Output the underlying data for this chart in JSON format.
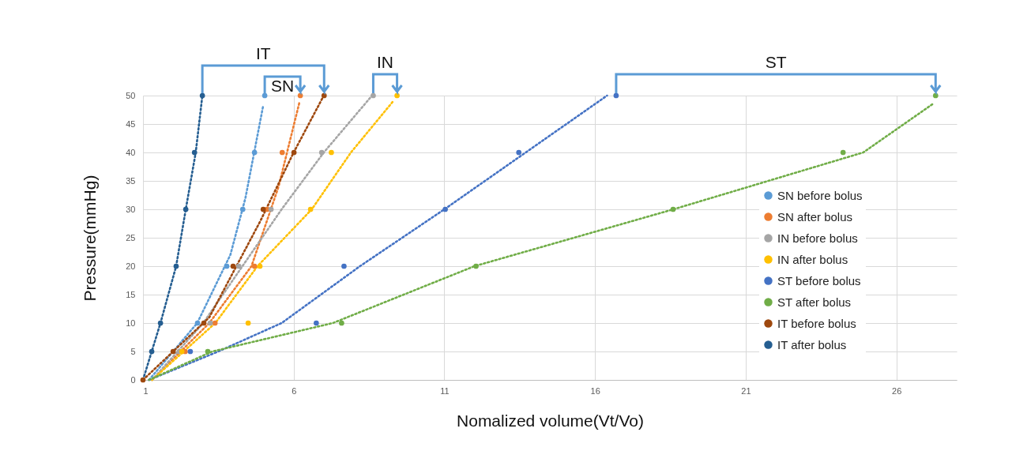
{
  "chart_data": {
    "type": "scatter",
    "xlabel": "Nomalized volume(Vt/Vo)",
    "ylabel": "Pressure(mmHg)",
    "xlim": [
      1,
      28
    ],
    "xticks": [
      1,
      6,
      11,
      16,
      21,
      26
    ],
    "ylim": [
      0,
      50
    ],
    "yticks": [
      0,
      5,
      10,
      15,
      20,
      25,
      30,
      35,
      40,
      45,
      50
    ],
    "grid": true,
    "legend": "bottom right",
    "marker": "circle",
    "annotations": [
      "SN",
      "IN",
      "ST",
      "IT"
    ],
    "series": [
      {
        "name": "SN before bolus",
        "color": "#5b9bd5",
        "x": [
          2.81,
          3.78,
          4.31,
          4.7,
          5.04
        ],
        "values": [
          10,
          20,
          30,
          40,
          50
        ]
      },
      {
        "name": "SN after bolus",
        "color": "#ed7d31",
        "x": [
          2.4,
          3.39,
          4.7,
          5.12,
          5.62,
          6.22
        ],
        "values": [
          5,
          10,
          20,
          30,
          40,
          50
        ]
      },
      {
        "name": "IN before bolus",
        "color": "#a5a5a5",
        "x": [
          2.2,
          3.23,
          4.18,
          5.25,
          6.93,
          8.64
        ],
        "values": [
          5,
          10,
          20,
          30,
          40,
          50
        ]
      },
      {
        "name": "IN after bolus",
        "color": "#ffc000",
        "x": [
          2.29,
          4.49,
          4.88,
          6.56,
          7.25,
          9.43
        ],
        "values": [
          5,
          10,
          20,
          30,
          40,
          50
        ]
      },
      {
        "name": "ST before bolus",
        "color": "#4472c4",
        "x": [
          2.57,
          6.75,
          7.67,
          11.03,
          13.47,
          16.7
        ],
        "values": [
          5,
          10,
          20,
          30,
          40,
          50
        ]
      },
      {
        "name": "ST after bolus",
        "color": "#70ad47",
        "x": [
          3.15,
          7.59,
          12.05,
          18.59,
          24.23,
          27.3
        ],
        "values": [
          5,
          10,
          20,
          30,
          40,
          50
        ]
      },
      {
        "name": "IT before bolus",
        "color": "#9e480e",
        "x": [
          1,
          2,
          3.02,
          3.99,
          4.99,
          6.01,
          7.01
        ],
        "values": [
          0,
          5,
          10,
          20,
          30,
          40,
          50
        ]
      },
      {
        "name": "IT after bolus",
        "color": "#255e91",
        "x": [
          1.29,
          1.58,
          2.1,
          2.42,
          2.71,
          2.97
        ],
        "values": [
          5,
          10,
          20,
          30,
          40,
          50
        ]
      },
      {
        "type": "line",
        "line_style": "dotted",
        "marker": "none",
        "color": "#5b9bd5",
        "x": [
          1.2,
          2.8,
          3.9,
          4.4,
          4.98
        ],
        "values": [
          0,
          10,
          22,
          32,
          48
        ]
      },
      {
        "type": "line",
        "line_style": "dotted",
        "marker": "none",
        "color": "#ed7d31",
        "x": [
          1.3,
          3.2,
          4.6,
          5.5,
          6.2
        ],
        "values": [
          0,
          10,
          20,
          34,
          49
        ]
      },
      {
        "type": "line",
        "line_style": "dotted",
        "marker": "none",
        "color": "#a5a5a5",
        "x": [
          1.3,
          3,
          4.3,
          5.6,
          7,
          8.6
        ],
        "values": [
          0,
          10,
          20,
          30,
          40,
          50
        ]
      },
      {
        "type": "line",
        "line_style": "dotted",
        "marker": "none",
        "color": "#ffc000",
        "x": [
          1.3,
          3.4,
          4.8,
          6.6,
          7.9,
          9.3
        ],
        "values": [
          0,
          10,
          20,
          30,
          40,
          49
        ]
      },
      {
        "type": "line",
        "line_style": "dotted",
        "marker": "none",
        "color": "#4472c4",
        "x": [
          1.2,
          3.5,
          5.6,
          8.2,
          11,
          13.7,
          16.4
        ],
        "values": [
          0,
          5,
          10,
          20,
          30,
          40,
          50
        ]
      },
      {
        "type": "line",
        "line_style": "dotted",
        "marker": "none",
        "color": "#70ad47",
        "x": [
          1.2,
          3.3,
          7.3,
          12,
          18.6,
          24.9,
          27.2
        ],
        "values": [
          0,
          5,
          10,
          20,
          30,
          40,
          48.5
        ]
      },
      {
        "type": "line",
        "line_style": "dotted",
        "marker": "none",
        "color": "#9e480e",
        "x": [
          1,
          2.4,
          3.2,
          4.9,
          6,
          7
        ],
        "values": [
          0,
          7,
          11,
          28,
          40,
          50
        ]
      },
      {
        "type": "line",
        "line_style": "dotted",
        "marker": "none",
        "color": "#255e91",
        "x": [
          1,
          1.58,
          2.1,
          2.42,
          2.75,
          2.97
        ],
        "values": [
          0,
          10,
          20,
          30,
          40,
          50
        ]
      }
    ]
  }
}
